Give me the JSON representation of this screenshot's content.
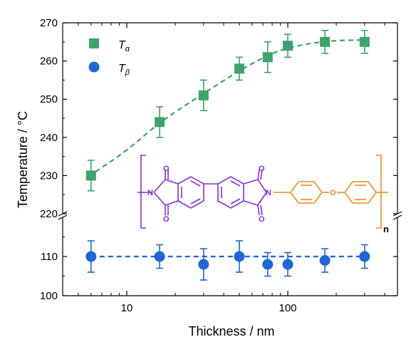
{
  "chart_data": {
    "type": "scatter",
    "xlabel": "Thickness / nm",
    "ylabel": "Temperature / °C",
    "x_scale": "log",
    "xlim": [
      4,
      480
    ],
    "ylim_upper": [
      220,
      270
    ],
    "ylim_lower": [
      100,
      120
    ],
    "x_ticks": [
      10,
      100
    ],
    "x_tick_labels": [
      "10",
      "100"
    ],
    "y_ticks_upper": [
      220,
      230,
      240,
      250,
      260,
      270
    ],
    "y_tick_labels_upper": [
      "220",
      "230",
      "240",
      "250",
      "260",
      "270"
    ],
    "y_ticks_lower": [
      100,
      110
    ],
    "y_tick_labels_lower": [
      "100",
      "110"
    ],
    "grid": false,
    "legend_position": "top-left",
    "series": [
      {
        "name": "Tα",
        "name_main": "T",
        "name_sub": "α",
        "color": "#3aa56a",
        "marker": "square",
        "fit_line": "dashed",
        "x": [
          6,
          16,
          30,
          50,
          75,
          100,
          170,
          300
        ],
        "y": [
          230,
          244,
          251,
          258,
          261,
          264,
          265,
          265
        ],
        "err": [
          4,
          4,
          4,
          3,
          4,
          3,
          3,
          3
        ],
        "fit_curve": [
          [
            6.4,
            231
          ],
          [
            10,
            236.5
          ],
          [
            16,
            244
          ],
          [
            30,
            251.5
          ],
          [
            50,
            257.5
          ],
          [
            75,
            261.5
          ],
          [
            100,
            263.5
          ],
          [
            170,
            265.3
          ],
          [
            300,
            265.5
          ]
        ]
      },
      {
        "name": "Tβ",
        "name_main": "T",
        "name_sub": "β",
        "color": "#1f66d6",
        "marker": "circle",
        "fit_line": "dashed",
        "x": [
          6,
          16,
          30,
          50,
          75,
          100,
          170,
          300
        ],
        "y": [
          110,
          110,
          108,
          110,
          108,
          108,
          109,
          110
        ],
        "err": [
          4,
          3,
          4,
          4,
          3,
          3,
          3,
          3
        ],
        "fit_curve": [
          [
            6,
            110
          ],
          [
            300,
            110
          ]
        ]
      }
    ],
    "inset_structure": {
      "repeat_label": "n",
      "atoms": [
        "N",
        "O",
        "O",
        "N",
        "O",
        "O",
        "O"
      ],
      "colors": {
        "dianhydride": "#8a2be2",
        "diamine": "#f08c1e"
      }
    }
  }
}
